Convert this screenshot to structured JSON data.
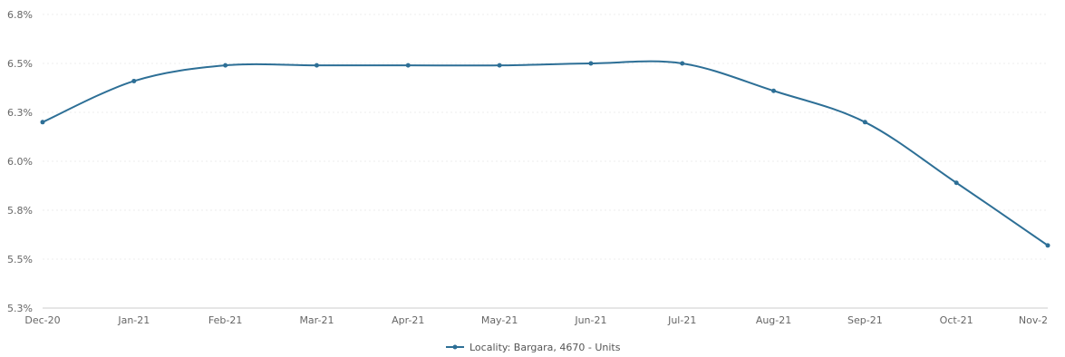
{
  "chart_data": {
    "type": "line",
    "categories": [
      "Dec-20",
      "Jan-21",
      "Feb-21",
      "Mar-21",
      "Apr-21",
      "May-21",
      "Jun-21",
      "Jul-21",
      "Aug-21",
      "Sep-21",
      "Oct-21",
      "Nov-2"
    ],
    "series": [
      {
        "name": "Locality: Bargara, 4670 - Units",
        "values": [
          6.2,
          6.41,
          6.49,
          6.49,
          6.49,
          6.49,
          6.5,
          6.5,
          6.36,
          6.2,
          5.89,
          5.57
        ],
        "color": "#2d6f96"
      }
    ],
    "y_ticks": [
      "6.8%",
      "6.5%",
      "6.3%",
      "6.0%",
      "5.8%",
      "5.5%",
      "5.3%"
    ],
    "y_tick_values": [
      6.75,
      6.5,
      6.25,
      6.0,
      5.75,
      5.5,
      5.25
    ],
    "ylim": [
      5.25,
      6.75
    ],
    "grid": true,
    "legend_position": "bottom-center",
    "title": "",
    "xlabel": "",
    "ylabel": ""
  }
}
